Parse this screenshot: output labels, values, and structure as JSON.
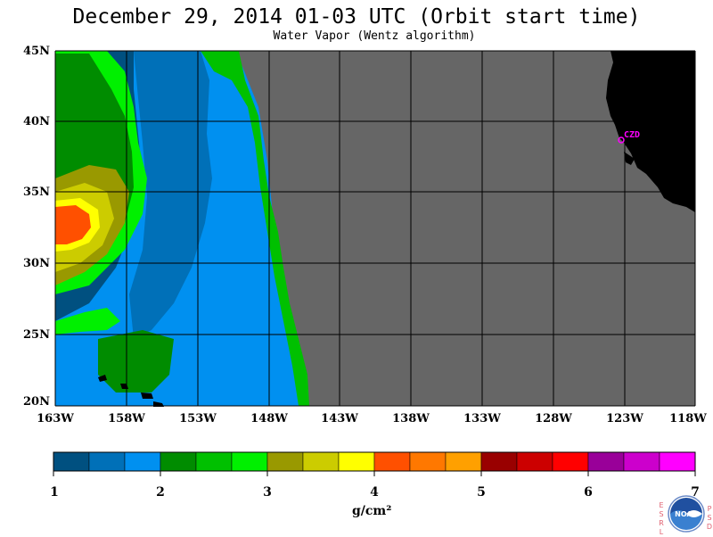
{
  "header": {
    "title": "December 29, 2014  01-03 UTC  (Orbit start time)",
    "subtitle": "Water Vapor (Wentz algorithm)"
  },
  "map": {
    "lat_labels": [
      "45N",
      "40N",
      "35N",
      "30N",
      "25N",
      "20N"
    ],
    "lon_labels": [
      "163W",
      "158W",
      "153W",
      "148W",
      "143W",
      "138W",
      "133W",
      "128W",
      "123W",
      "118W"
    ],
    "station_label": "CZD",
    "colors": {
      "no_data": "#666666",
      "land": "#000000",
      "grid": "#000000",
      "station": "#ff00ff"
    }
  },
  "colorbar": {
    "tick_labels": [
      "1",
      "2",
      "3",
      "4",
      "5",
      "6",
      "7"
    ],
    "units": "g/cm²",
    "colors": [
      "#005080",
      "#0070b8",
      "#0090f0",
      "#008c00",
      "#00c000",
      "#00f000",
      "#999900",
      "#cccc00",
      "#ffff00",
      "#ff5000",
      "#ff7800",
      "#ffa000",
      "#990000",
      "#cc0000",
      "#ff0000",
      "#990099",
      "#cc00cc",
      "#ff00ff"
    ]
  },
  "logo": {
    "left_letters": "ESRL",
    "right_letters": "PSD",
    "badge_text": "NOAA"
  }
}
